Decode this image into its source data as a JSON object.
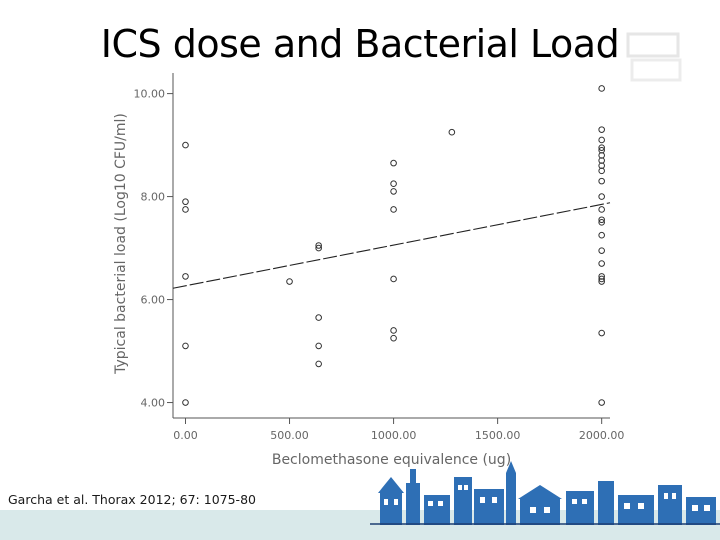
{
  "slide": {
    "title": "ICS dose and Bacterial Load",
    "citation": "Garcha et al. Thorax 2012; 67: 1075-80"
  },
  "colors": {
    "axis": "#555555",
    "points": "#333333",
    "trend": "#222222",
    "footer_band": "#d9e9ea",
    "skyline_blue": "#2e6fb5",
    "skyline_dark": "#1d3f73"
  },
  "chart_data": {
    "type": "scatter",
    "xlabel": "Beclomethasone equivalence (ug)",
    "ylabel": "Typical bacterial load (Log10 CFU/ml)",
    "xlim": [
      -60,
      2040
    ],
    "ylim": [
      3.7,
      10.4
    ],
    "x_ticks": [
      {
        "value": 0,
        "label": "0.00"
      },
      {
        "value": 500,
        "label": "500.00"
      },
      {
        "value": 1000,
        "label": "1000.00"
      },
      {
        "value": 1500,
        "label": "1500.00"
      },
      {
        "value": 2000,
        "label": "2000.00"
      }
    ],
    "y_ticks": [
      {
        "value": 4,
        "label": "4.00"
      },
      {
        "value": 6,
        "label": "6.00"
      },
      {
        "value": 8,
        "label": "8.00"
      },
      {
        "value": 10,
        "label": "10.00"
      }
    ],
    "grid": false,
    "marker": "open-circle",
    "points": [
      {
        "x": 0,
        "y": 9.0
      },
      {
        "x": 0,
        "y": 7.9
      },
      {
        "x": 0,
        "y": 7.75
      },
      {
        "x": 0,
        "y": 6.45
      },
      {
        "x": 0,
        "y": 5.1
      },
      {
        "x": 0,
        "y": 4.0
      },
      {
        "x": 500,
        "y": 6.35
      },
      {
        "x": 640,
        "y": 7.05
      },
      {
        "x": 640,
        "y": 7.0
      },
      {
        "x": 640,
        "y": 5.65
      },
      {
        "x": 640,
        "y": 5.1
      },
      {
        "x": 640,
        "y": 4.75
      },
      {
        "x": 1000,
        "y": 8.65
      },
      {
        "x": 1000,
        "y": 8.25
      },
      {
        "x": 1000,
        "y": 8.1
      },
      {
        "x": 1000,
        "y": 7.75
      },
      {
        "x": 1000,
        "y": 6.4
      },
      {
        "x": 1000,
        "y": 5.4
      },
      {
        "x": 1000,
        "y": 5.25
      },
      {
        "x": 1280,
        "y": 9.25
      },
      {
        "x": 2000,
        "y": 10.1
      },
      {
        "x": 2000,
        "y": 9.3
      },
      {
        "x": 2000,
        "y": 9.1
      },
      {
        "x": 2000,
        "y": 8.95
      },
      {
        "x": 2000,
        "y": 8.9
      },
      {
        "x": 2000,
        "y": 8.8
      },
      {
        "x": 2000,
        "y": 8.7
      },
      {
        "x": 2000,
        "y": 8.6
      },
      {
        "x": 2000,
        "y": 8.5
      },
      {
        "x": 2000,
        "y": 8.3
      },
      {
        "x": 2000,
        "y": 8.0
      },
      {
        "x": 2000,
        "y": 7.75
      },
      {
        "x": 2000,
        "y": 7.55
      },
      {
        "x": 2000,
        "y": 7.5
      },
      {
        "x": 2000,
        "y": 7.25
      },
      {
        "x": 2000,
        "y": 6.95
      },
      {
        "x": 2000,
        "y": 6.7
      },
      {
        "x": 2000,
        "y": 6.45
      },
      {
        "x": 2000,
        "y": 6.4
      },
      {
        "x": 2000,
        "y": 6.35
      },
      {
        "x": 2000,
        "y": 5.35
      },
      {
        "x": 2000,
        "y": 4.0
      }
    ],
    "trendline": {
      "style": "long-dash",
      "x": [
        -60,
        2040
      ],
      "y": [
        6.22,
        7.88
      ]
    }
  }
}
